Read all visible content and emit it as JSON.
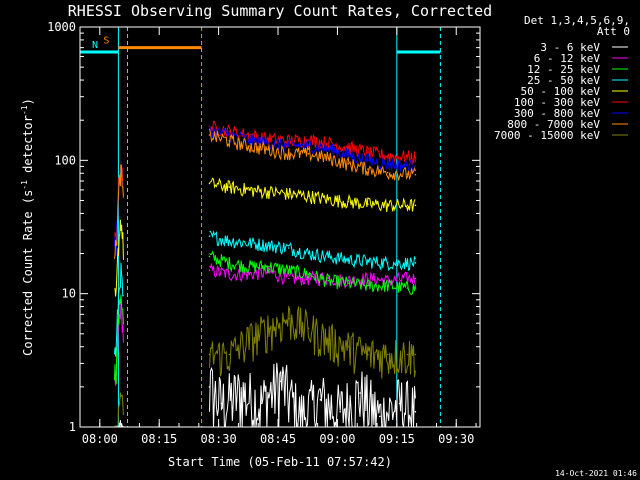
{
  "chart_data": {
    "type": "line",
    "title": "RHESSI Observing Summary Count Rates, Corrected",
    "xlabel": "Start Time (05-Feb-11 07:57:42)",
    "ylabel": "Corrected Count Rate (s⁻¹ detector⁻¹)",
    "ylabel_parts": [
      "Corrected Count Rate (s",
      "-1",
      " detector",
      "-1",
      ")"
    ],
    "x_scale": "time (minutes after 07:57:42)",
    "xlim_minutes": [
      -2.7,
      98.3
    ],
    "y_scale": "log",
    "ylim": [
      1,
      1000
    ],
    "x_ticks": [
      {
        "t": 2.3,
        "label": "08:00"
      },
      {
        "t": 17.3,
        "label": "08:15"
      },
      {
        "t": 32.3,
        "label": "08:30"
      },
      {
        "t": 47.3,
        "label": "08:45"
      },
      {
        "t": 62.3,
        "label": "09:00"
      },
      {
        "t": 77.3,
        "label": "09:15"
      },
      {
        "t": 92.3,
        "label": "09:30"
      }
    ],
    "y_ticks": [
      {
        "v": 1,
        "label": "1"
      },
      {
        "v": 10,
        "label": "10"
      },
      {
        "v": 100,
        "label": "100"
      },
      {
        "v": 1000,
        "label": "1000"
      }
    ],
    "legend_header": [
      "Det 1,3,4,5,6,9,",
      "Att 0"
    ],
    "legend_placement": "right",
    "series": [
      {
        "name": "3 - 6 keV",
        "color": "#ffffff",
        "x": [
          30.0,
          33,
          38,
          43,
          48,
          53,
          58,
          63,
          68,
          73,
          78,
          82.0
        ],
        "y": [
          2.0,
          1.5,
          1.8,
          1.5,
          2.2,
          1.2,
          1.6,
          1.3,
          1.8,
          1.2,
          1.5,
          1.3
        ]
      },
      {
        "name": "6 - 12 keV",
        "color": "#ff00ff",
        "x": [
          30.0,
          35,
          40,
          45,
          50,
          55,
          60,
          65,
          70,
          75,
          80,
          82.0
        ],
        "y": [
          15,
          14,
          14,
          14.5,
          13,
          13,
          13,
          12.5,
          13,
          12.5,
          13,
          13
        ]
      },
      {
        "name": "12 - 25 keV",
        "color": "#00ff00",
        "x": [
          30.0,
          35,
          40,
          45,
          50,
          55,
          60,
          65,
          70,
          75,
          80,
          82.0
        ],
        "y": [
          19,
          17,
          16,
          16,
          15,
          14,
          12.5,
          12,
          11.5,
          11.5,
          11,
          11
        ]
      },
      {
        "name": "25 - 50 keV",
        "color": "#00ffff",
        "x": [
          30.0,
          35,
          40,
          45,
          50,
          55,
          60,
          65,
          70,
          75,
          80,
          82.0
        ],
        "y": [
          27,
          25,
          24,
          23,
          22,
          20,
          19,
          18,
          17.5,
          17,
          17,
          17
        ]
      },
      {
        "name": "50 - 100 keV",
        "color": "#ffff00",
        "x": [
          30.0,
          35,
          40,
          45,
          50,
          55,
          60,
          65,
          70,
          75,
          80,
          82.0
        ],
        "y": [
          67,
          63,
          60,
          58,
          56,
          54,
          51,
          49,
          47,
          46,
          46,
          46
        ]
      },
      {
        "name": "100 - 300 keV",
        "color": "#ff0000",
        "x": [
          30.0,
          35,
          40,
          45,
          50,
          55,
          60,
          65,
          70,
          75,
          80,
          82.0
        ],
        "y": [
          180,
          165,
          155,
          145,
          140,
          142,
          135,
          125,
          115,
          108,
          106,
          105
        ]
      },
      {
        "name": "300 - 800 keV",
        "color": "#0000ff",
        "x": [
          30.0,
          35,
          40,
          45,
          50,
          55,
          60,
          65,
          70,
          75,
          80,
          82.0
        ],
        "y": [
          170,
          155,
          142,
          135,
          128,
          130,
          122,
          110,
          100,
          94,
          92,
          91
        ]
      },
      {
        "name": "800 - 7000 keV",
        "color": "#ff8c00",
        "x": [
          30.0,
          35,
          40,
          45,
          50,
          55,
          60,
          65,
          70,
          75,
          80,
          82.0
        ],
        "y": [
          155,
          140,
          128,
          120,
          113,
          112,
          104,
          94,
          86,
          81,
          79,
          78
        ]
      },
      {
        "name": "7000 - 15000 keV",
        "color": "#808000",
        "x": [
          30.0,
          35,
          40,
          45,
          50,
          55,
          60,
          65,
          70,
          75,
          80,
          82.0
        ],
        "y": [
          3.5,
          3.5,
          4.5,
          5.5,
          6.5,
          5.5,
          4.5,
          4.0,
          3.5,
          3.5,
          3.5,
          3.5
        ]
      }
    ],
    "segments": [
      {
        "label": "S",
        "color": "#ff8c00",
        "span_minutes": [
          7.0,
          28.0
        ],
        "level": 700
      },
      {
        "label": "N",
        "color": "#00ffff",
        "span_minutes": [
          -2.7,
          7.0
        ],
        "level": 650
      },
      {
        "label": "",
        "color": "#00ffff",
        "span_minutes": [
          77.3,
          88.3
        ],
        "level": 650
      }
    ],
    "grid": false,
    "footer_timestamp": "14-Oct-2021 01:46"
  }
}
